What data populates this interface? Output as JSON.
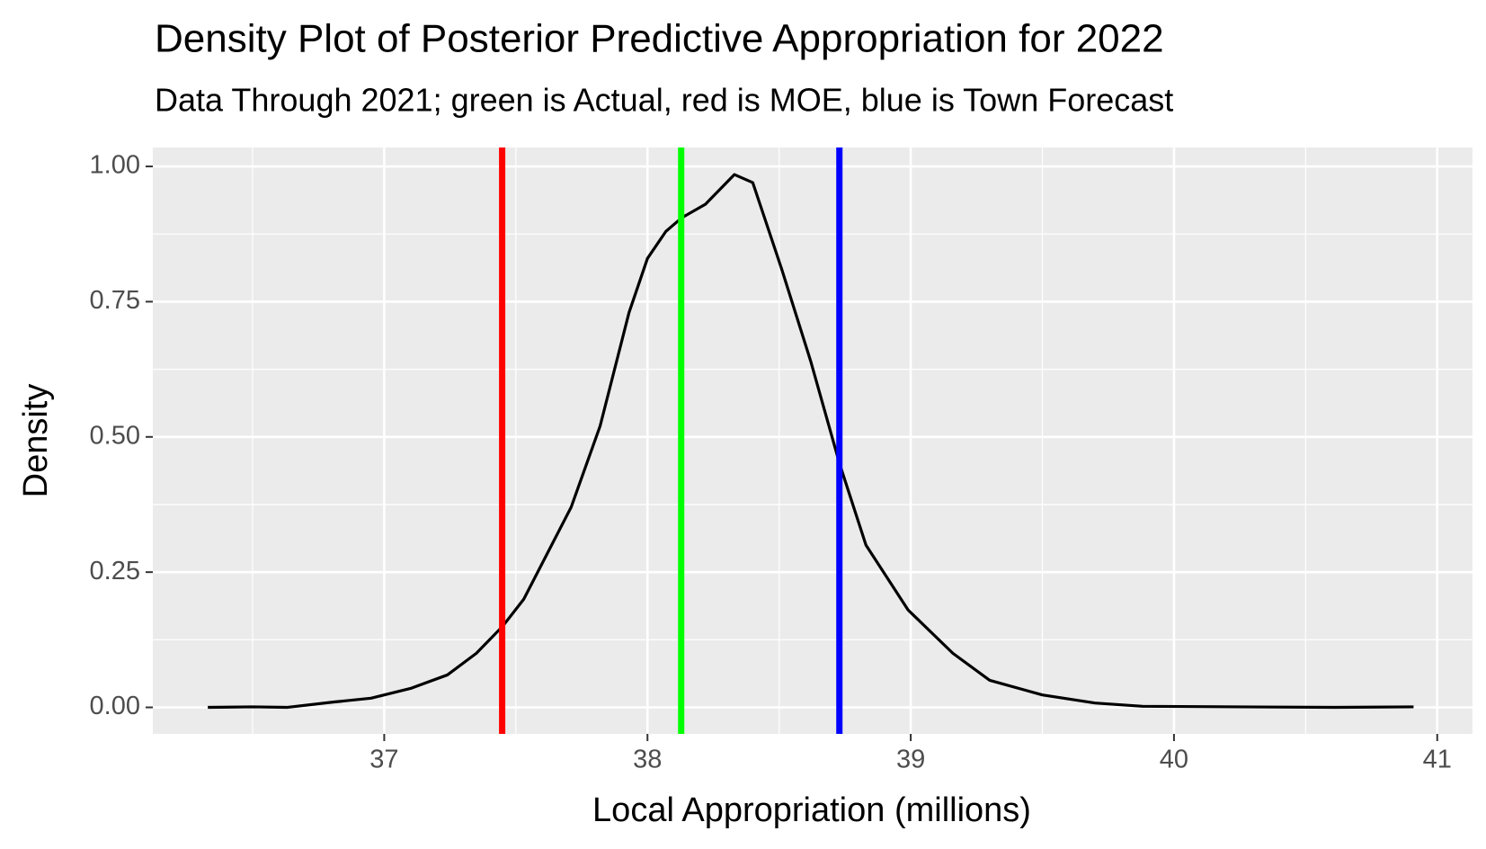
{
  "chart_data": {
    "type": "line",
    "title": "Density Plot of Posterior Predictive Appropriation for  2022",
    "subtitle": "Data Through 2021; green is Actual, red is MOE, blue is Town Forecast",
    "x_label": "Local Appropriation (millions)",
    "y_label": "Density",
    "x": [
      36.33,
      36.5,
      36.63,
      36.81,
      36.95,
      37.1,
      37.24,
      37.35,
      37.45,
      37.53,
      37.71,
      37.82,
      37.93,
      38.0,
      38.07,
      38.13,
      38.22,
      38.33,
      38.4,
      38.51,
      38.62,
      38.73,
      38.83,
      38.99,
      39.16,
      39.3,
      39.5,
      39.7,
      39.88,
      40.24,
      40.61,
      40.91
    ],
    "series": [
      {
        "name": "Density",
        "color": "#000000",
        "values": [
          0.0,
          0.001,
          0.0,
          0.01,
          0.017,
          0.035,
          0.06,
          0.1,
          0.15,
          0.2,
          0.37,
          0.52,
          0.73,
          0.83,
          0.88,
          0.905,
          0.93,
          0.985,
          0.97,
          0.81,
          0.64,
          0.45,
          0.3,
          0.18,
          0.1,
          0.05,
          0.023,
          0.008,
          0.002,
          0.001,
          0.0,
          0.001
        ]
      }
    ],
    "vlines": [
      {
        "x": 37.448,
        "color": "#ff0000"
      },
      {
        "x": 38.128,
        "color": "#00ff00"
      },
      {
        "x": 38.729,
        "color": "#0000ff"
      }
    ],
    "xlim": [
      36.121,
      41.134
    ],
    "ylim": [
      -0.049,
      1.035
    ],
    "xticks": [
      37,
      38,
      39,
      40,
      41
    ],
    "yticks": [
      {
        "value": 0,
        "label": "0.00"
      },
      {
        "value": 0.25,
        "label": "0.25"
      },
      {
        "value": 0.5,
        "label": "0.50"
      },
      {
        "value": 0.75,
        "label": "0.75"
      },
      {
        "value": 1,
        "label": "1.00"
      }
    ],
    "grid": true
  }
}
